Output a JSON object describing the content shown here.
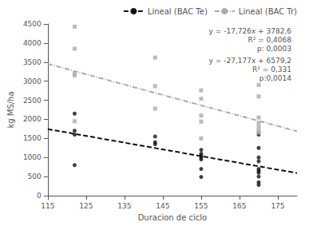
{
  "chart_data": {
    "type": "scatter",
    "xlabel": "Duracion de ciclo",
    "ylabel": "kg MS/ha",
    "xlim": [
      115,
      180
    ],
    "ylim": [
      0,
      4500
    ],
    "xticks": [
      115,
      125,
      135,
      145,
      155,
      165,
      175
    ],
    "yticks": [
      0,
      500,
      1000,
      1500,
      2000,
      2500,
      3000,
      3500,
      4000,
      4500
    ],
    "grid": false,
    "legend": "upper right",
    "series": [
      {
        "type": "scatter",
        "color": "#111111",
        "marker": "circle",
        "x": [
          122,
          122,
          122,
          122,
          143,
          143,
          143,
          155,
          155,
          155,
          155,
          155,
          155,
          155,
          170,
          170,
          170,
          170,
          170,
          170,
          170,
          170,
          170,
          170
        ],
        "values": [
          800,
          1600,
          1700,
          2150,
          1350,
          1400,
          1550,
          490,
          700,
          950,
          1000,
          1050,
          1100,
          1200,
          280,
          350,
          500,
          600,
          650,
          700,
          900,
          1000,
          1250,
          1600
        ]
      },
      {
        "type": "scatter",
        "color": "#aaaaaa",
        "marker": "square",
        "x": [
          122,
          122,
          122,
          122,
          122,
          143,
          143,
          143,
          155,
          155,
          155,
          155,
          155,
          170,
          170,
          170,
          170,
          170,
          170,
          170
        ],
        "values": [
          1950,
          3150,
          3850,
          4430,
          3200,
          2280,
          2870,
          3620,
          1500,
          1940,
          2100,
          2540,
          2760,
          1650,
          1700,
          1800,
          1900,
          2050,
          2600,
          2900
        ]
      },
      {
        "type": "line",
        "name": "Lineal (BAC Te)",
        "color": "#111111",
        "line_style": "dashed",
        "x": [
          115,
          180
        ],
        "values": [
          1744.11,
          591.92
        ]
      },
      {
        "type": "line",
        "name": "Lineal (BAC Tr)",
        "color": "#aaaaaa",
        "line_style": "dashdot",
        "x": [
          115,
          180
        ],
        "values": [
          3453.845,
          1687.34
        ]
      }
    ],
    "annotations": [
      "y = -17,726x + 3782,6",
      "R² = 0,4068",
      "p: 0,0003",
      "y = -27,177x + 6579,2",
      "R² = 0,331",
      "p:0,0014"
    ]
  }
}
